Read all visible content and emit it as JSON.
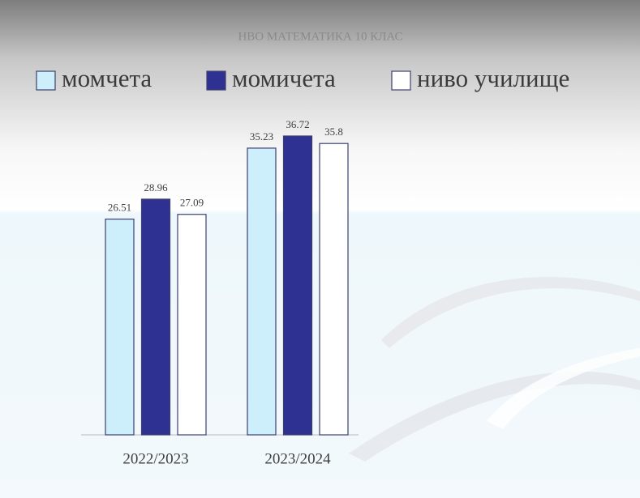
{
  "chart_data": {
    "type": "bar",
    "title": "НВО МАТЕМАТИКА 10 КЛАС",
    "categories": [
      "2022/2023",
      "2023/2024"
    ],
    "series": [
      {
        "name": "момчета",
        "color": "#cdeefb",
        "values": [
          26.51,
          35.23
        ]
      },
      {
        "name": "момичета",
        "color": "#2e3192",
        "values": [
          28.96,
          36.72
        ]
      },
      {
        "name": "ниво училище",
        "color": "#ffffff",
        "values": [
          27.09,
          35.8
        ]
      }
    ]
  }
}
